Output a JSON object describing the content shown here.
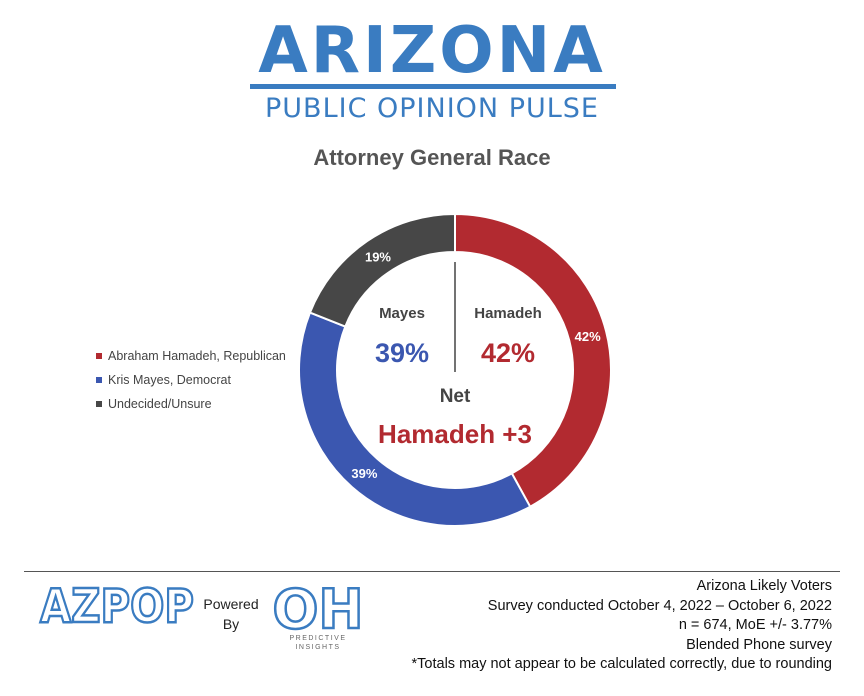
{
  "header": {
    "logo_main": "ARIZONA",
    "logo_sub": "PUBLIC OPINION PULSE"
  },
  "chart_data": {
    "type": "pie",
    "title": "Attorney General Race",
    "donut": true,
    "slices": [
      {
        "label": "Abraham Hamadeh, Republican",
        "value": 42,
        "display": "42%",
        "color": "#b22a30"
      },
      {
        "label": "Kris Mayes, Democrat",
        "value": 39,
        "display": "39%",
        "color": "#3b57b0"
      },
      {
        "label": "Undecided/Unsure",
        "value": 19,
        "display": "19%",
        "color": "#474747"
      }
    ],
    "legend_position": "left",
    "center": {
      "left_name": "Mayes",
      "left_value": "39%",
      "right_name": "Hamadeh",
      "right_value": "42%",
      "net_label": "Net",
      "net_value": "Hamadeh +3"
    }
  },
  "footer": {
    "azpop_logo": "AZPOP",
    "powered_line1": "Powered",
    "powered_line2": "By",
    "oh_logo": "OH",
    "oh_caption_line1": "PREDICTIVE",
    "oh_caption_line2": "INSIGHTS",
    "survey_lines": [
      "Arizona Likely Voters",
      "Survey conducted October 4, 2022 – October 6, 2022",
      "n = 674, MoE +/- 3.77%",
      "Blended Phone survey",
      "*Totals may not appear to be calculated correctly, due to rounding"
    ]
  },
  "colors": {
    "brand_blue": "#3a7cc1",
    "republican_red": "#b22a30",
    "democrat_blue": "#3b57b0",
    "undecided_gray": "#474747"
  }
}
